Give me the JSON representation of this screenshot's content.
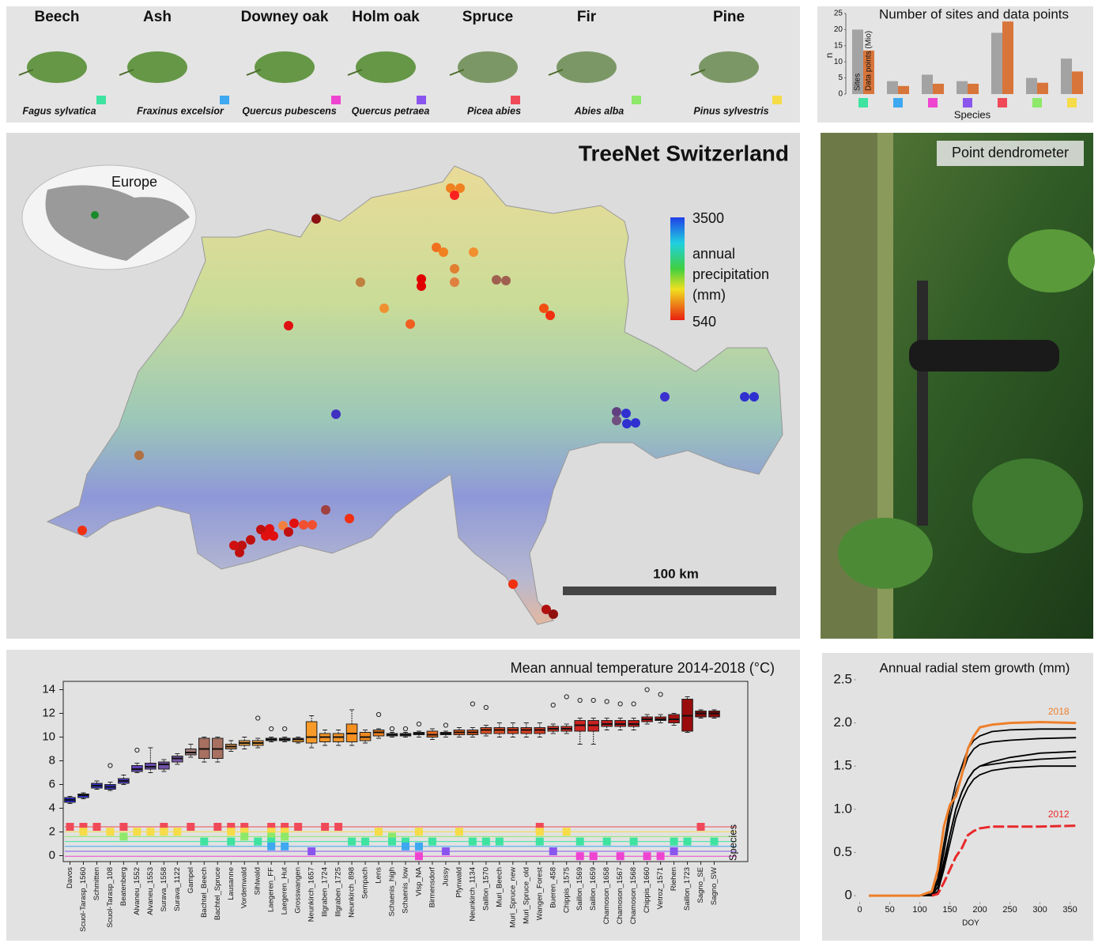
{
  "species": [
    {
      "name": "Beech",
      "latin": "Fagus sylvatica",
      "color": "#3fe3a0"
    },
    {
      "name": "Ash",
      "latin": "Fraxinus excelsior",
      "color": "#3ea8f0"
    },
    {
      "name": "Downey oak",
      "latin": "Quercus pubescens",
      "color": "#ee44d0"
    },
    {
      "name": "Holm oak",
      "latin": "Quercus petraea",
      "color": "#8a55ee"
    },
    {
      "name": "Spruce",
      "latin": "Picea abies",
      "color": "#f04a58"
    },
    {
      "name": "Fir",
      "latin": "Abies alba",
      "color": "#8ee86a"
    },
    {
      "name": "Pine",
      "latin": "Pinus sylvestris",
      "color": "#f5dc48"
    }
  ],
  "map": {
    "title": "TreeNet Switzerland",
    "inset_label": "Europe",
    "colorbar_max": 3500,
    "colorbar_min": 540,
    "colorbar_label": [
      "annual",
      "precipitation",
      "(mm)"
    ],
    "scale_label": "100 km"
  },
  "photo": {
    "label": "Point dendrometer"
  },
  "chart_data": [
    {
      "type": "bar",
      "title": "Number of sites and  data points",
      "y_label": "n",
      "x_label": "Species",
      "categories": [
        null,
        null,
        null,
        null,
        null,
        null,
        null
      ],
      "category_colors": [
        "#3fe3a0",
        "#3ea8f0",
        "#ee44d0",
        "#8a55ee",
        "#f04a58",
        "#8ee86a",
        "#f5dc48"
      ],
      "series": [
        {
          "name": "Sites",
          "color": "#a3a3a3",
          "values": [
            20,
            4,
            6,
            4,
            19,
            5,
            11
          ]
        },
        {
          "name": "Data points (Mio)",
          "color": "#d8753a",
          "values": [
            13.5,
            2.5,
            3.2,
            3.2,
            22.5,
            3.5,
            7
          ]
        }
      ],
      "ylim": [
        0,
        25
      ],
      "yticks": [
        0,
        5,
        10,
        15,
        20,
        25
      ]
    },
    {
      "type": "box",
      "title": "Mean annual temperature 2014-2018 (°C)",
      "species_label": "Species",
      "categories": [
        "Davos",
        "Scuol-Tarasp_1560",
        "Schmitten",
        "Scuol-Tarasp_108",
        "Beatenberg",
        "Alvaneu_1552",
        "Alvaneu_1553",
        "Surava_1558",
        "Surava_1122",
        "Gampel",
        "Bachtel_Beech",
        "Bachtel_Spruce",
        "Lausanne",
        "Vordemwald",
        "Sihlwald",
        "Laegeren_FF",
        "Laegeren_Hut",
        "Grosswangen",
        "Neunkirch_1657",
        "Illgraben_1724",
        "Illgraben_1725",
        "Neunkirch_898",
        "Sempach",
        "Lens",
        "Schaenis_high",
        "Schaenis_low",
        "Visp_NA",
        "Birmensdorf",
        "Jussy",
        "Pfynwald",
        "Neunkirch_1134",
        "Saillon_1570",
        "Muri_Beech",
        "Muri_Spruce_new",
        "Muri_Spruce_old",
        "Wangen_Forest",
        "Bueren_458",
        "Chippis_1575",
        "Saillon_1569",
        "Saillon_1659",
        "Chamoson_1658",
        "Chamoson_1567",
        "Chamoson_1568",
        "Chippis_1660",
        "Vetroz_1571",
        "Riehen",
        "Saillon_1723",
        "Sagno_SE",
        "Sagno_SW"
      ],
      "min": [
        4.4,
        4.8,
        5.6,
        5.5,
        6.0,
        7.0,
        7.0,
        7.1,
        7.7,
        8.3,
        7.9,
        7.9,
        8.8,
        9.0,
        9.1,
        9.6,
        9.6,
        9.5,
        9.1,
        9.3,
        9.3,
        9.3,
        9.5,
        9.9,
        10.0,
        10.0,
        10.0,
        9.8,
        10.0,
        10.0,
        10.0,
        10.1,
        10.0,
        10.0,
        10.0,
        10.0,
        10.3,
        10.3,
        9.4,
        9.4,
        10.6,
        10.6,
        10.6,
        11.1,
        11.2,
        11.0,
        10.4,
        11.6,
        11.6
      ],
      "q1": [
        4.5,
        4.9,
        5.7,
        5.6,
        6.1,
        7.1,
        7.3,
        7.3,
        7.9,
        8.5,
        8.2,
        8.2,
        9.0,
        9.3,
        9.3,
        9.7,
        9.7,
        9.6,
        9.5,
        9.6,
        9.6,
        9.6,
        9.7,
        10.1,
        10.1,
        10.1,
        10.2,
        10.0,
        10.2,
        10.2,
        10.2,
        10.3,
        10.3,
        10.3,
        10.3,
        10.3,
        10.5,
        10.5,
        10.5,
        10.5,
        10.9,
        10.9,
        10.9,
        11.3,
        11.4,
        11.2,
        10.5,
        11.7,
        11.7
      ],
      "median": [
        4.7,
        5.1,
        5.9,
        5.8,
        6.3,
        7.3,
        7.5,
        7.7,
        8.2,
        8.7,
        9.0,
        9.0,
        9.2,
        9.5,
        9.5,
        9.8,
        9.8,
        9.8,
        10.0,
        10.0,
        10.0,
        10.3,
        10.0,
        10.4,
        10.2,
        10.2,
        10.3,
        10.2,
        10.3,
        10.4,
        10.4,
        10.6,
        10.6,
        10.6,
        10.6,
        10.6,
        10.7,
        10.7,
        11.0,
        11.0,
        11.1,
        11.1,
        11.1,
        11.5,
        11.5,
        11.5,
        11.8,
        12.0,
        12.0
      ],
      "q3": [
        4.9,
        5.2,
        6.1,
        6.0,
        6.5,
        7.6,
        7.8,
        7.9,
        8.4,
        9.0,
        9.9,
        9.9,
        9.4,
        9.7,
        9.7,
        9.9,
        9.9,
        9.9,
        11.3,
        10.3,
        10.3,
        11.1,
        10.4,
        10.6,
        10.3,
        10.3,
        10.4,
        10.5,
        10.4,
        10.6,
        10.6,
        10.8,
        10.8,
        10.8,
        10.8,
        10.8,
        10.9,
        10.9,
        11.4,
        11.4,
        11.4,
        11.4,
        11.4,
        11.7,
        11.7,
        11.9,
        13.2,
        12.2,
        12.2
      ],
      "max": [
        5.0,
        5.3,
        6.3,
        6.2,
        6.8,
        7.8,
        9.1,
        8.1,
        8.6,
        9.4,
        10.0,
        10.0,
        9.7,
        10.0,
        9.9,
        10.0,
        10.0,
        10.0,
        11.8,
        10.6,
        10.6,
        12.3,
        10.6,
        10.7,
        10.4,
        10.4,
        10.5,
        10.7,
        10.5,
        10.8,
        10.8,
        11.0,
        11.2,
        11.2,
        11.2,
        11.2,
        11.1,
        11.1,
        11.6,
        11.6,
        11.6,
        11.6,
        11.6,
        11.9,
        11.9,
        12.0,
        13.4,
        12.3,
        12.3
      ],
      "outliers": [
        null,
        null,
        null,
        7.6,
        null,
        8.9,
        null,
        null,
        null,
        null,
        null,
        null,
        null,
        null,
        11.6,
        10.7,
        10.7,
        null,
        null,
        null,
        null,
        null,
        null,
        11.9,
        10.7,
        10.7,
        11.1,
        null,
        11.0,
        null,
        12.8,
        12.5,
        null,
        null,
        null,
        null,
        12.7,
        13.4,
        13.1,
        13.1,
        13.0,
        12.8,
        12.8,
        14.0,
        13.6,
        null,
        null,
        null,
        null
      ],
      "colors": [
        "#2020d0",
        "#2a2ad8",
        "#3030c8",
        "#3a34c8",
        "#4838c0",
        "#6040b8",
        "#6a48b0",
        "#7050a8",
        "#7a58a8",
        "#a07878",
        "#a87060",
        "#a87060",
        "#d09050",
        "#e09a40",
        "#e89838",
        "#f09a30",
        "#f09a30",
        "#f59a28",
        "#f89a28",
        "#f59528",
        "#f59528",
        "#f39020",
        "#f08a20",
        "#f08020",
        "#ee7a20",
        "#ee7520",
        "#ec7020",
        "#ea6a20",
        "#e86420",
        "#e65e20",
        "#e45820",
        "#e25020",
        "#e04a20",
        "#de4420",
        "#dc3e20",
        "#da3820",
        "#d83020",
        "#d42a20",
        "#d02420",
        "#cc2020",
        "#c81c1c",
        "#c41818",
        "#c01818",
        "#b81414",
        "#b41414",
        "#a81010",
        "#9a0c0c",
        "#8a0808",
        "#8a0808"
      ],
      "species_rows": [
        {
          "name": "Spruce",
          "color": "#f04a58",
          "sites": [
            "Davos",
            "Scuol-Tarasp_1560",
            "Schmitten",
            "Beatenberg",
            "Surava_1558",
            "Gampel",
            "Bachtel_Spruce",
            "Lausanne",
            "Vordemwald",
            "Laegeren_FF",
            "Laegeren_Hut",
            "Grosswangen",
            "Illgraben_1724",
            "Illgraben_1725",
            "Wangen_Forest",
            "Sagno_SE"
          ]
        },
        {
          "name": "Pine",
          "color": "#f5dc48",
          "sites": [
            "Scuol-Tarasp_1560",
            "Scuol-Tarasp_108",
            "Alvaneu_1552",
            "Alvaneu_1553",
            "Surava_1558",
            "Surava_1122",
            "Lausanne",
            "Vordemwald",
            "Laegeren_FF",
            "Laegeren_Hut",
            "Lens",
            "Visp_NA",
            "Pfynwald",
            "Wangen_Forest",
            "Chippis_1575"
          ]
        },
        {
          "name": "Fir",
          "color": "#8ee86a",
          "sites": [
            "Beatenberg",
            "Vordemwald",
            "Laegeren_FF",
            "Laegeren_Hut",
            "Schaenis_high"
          ]
        },
        {
          "name": "Beech",
          "color": "#3fe3a0",
          "sites": [
            "Bachtel_Beech",
            "Lausanne",
            "Sihlwald",
            "Laegeren_FF",
            "Neunkirch_898",
            "Sempach",
            "Schaenis_high",
            "Schaenis_low",
            "Birmensdorf",
            "Neunkirch_1134",
            "Saillon_1570",
            "Muri_Beech",
            "Wangen_Forest",
            "Saillon_1569",
            "Chamoson_1658",
            "Chamoson_1568",
            "Riehen",
            "Saillon_1723",
            "Sagno_SW"
          ]
        },
        {
          "name": "Ash",
          "color": "#3ea8f0",
          "sites": [
            "Laegeren_FF",
            "Laegeren_Hut",
            "Schaenis_low",
            "Visp_NA"
          ]
        },
        {
          "name": "Holm oak",
          "color": "#8a55ee",
          "sites": [
            "Neunkirch_1657",
            "Jussy",
            "Bueren_458",
            "Riehen"
          ]
        },
        {
          "name": "Downey oak",
          "color": "#ee44d0",
          "sites": [
            "Visp_NA",
            "Saillon_1569",
            "Saillon_1659",
            "Chamoson_1567",
            "Chippis_1660",
            "Vetroz_1571"
          ]
        }
      ],
      "ylim": [
        -0.5,
        14.7
      ],
      "yticks": [
        0,
        2,
        4,
        6,
        8,
        10,
        12,
        14
      ]
    },
    {
      "type": "line",
      "title": "Annual radial stem growth (mm)",
      "x_label": "DOY",
      "x": [
        15,
        100,
        120,
        130,
        140,
        150,
        160,
        170,
        180,
        190,
        200,
        220,
        250,
        300,
        360
      ],
      "series": [
        {
          "values": [
            0,
            0,
            0.02,
            0.2,
            0.6,
            1.0,
            1.3,
            1.5,
            1.7,
            1.8,
            1.85,
            1.9,
            1.92,
            1.93,
            1.93
          ],
          "color": "#000000"
        },
        {
          "values": [
            0,
            0,
            0.01,
            0.15,
            0.5,
            0.9,
            1.2,
            1.4,
            1.6,
            1.7,
            1.75,
            1.78,
            1.8,
            1.82,
            1.83
          ],
          "color": "#000000"
        },
        {
          "values": [
            0,
            0,
            0,
            0.1,
            0.4,
            0.7,
            1.0,
            1.2,
            1.35,
            1.45,
            1.5,
            1.55,
            1.6,
            1.65,
            1.67
          ],
          "color": "#000000"
        },
        {
          "values": [
            0,
            0,
            0,
            0.1,
            0.35,
            0.7,
            1.0,
            1.2,
            1.35,
            1.45,
            1.5,
            1.52,
            1.55,
            1.58,
            1.6
          ],
          "color": "#000000"
        },
        {
          "values": [
            0,
            0,
            0,
            0.05,
            0.3,
            0.6,
            0.9,
            1.1,
            1.25,
            1.35,
            1.4,
            1.45,
            1.48,
            1.5,
            1.5
          ],
          "color": "#000000"
        },
        {
          "name": "2012",
          "color": "#e8282a",
          "dashed": true,
          "values": [
            null,
            null,
            0,
            0.02,
            0.15,
            0.3,
            0.45,
            0.55,
            0.7,
            0.75,
            0.78,
            0.8,
            0.8,
            0.8,
            0.81
          ]
        },
        {
          "name": "2018",
          "color": "#ef7f2a",
          "values": [
            0,
            0,
            0.05,
            0.3,
            0.8,
            1.05,
            1.15,
            1.4,
            1.7,
            1.85,
            1.95,
            1.98,
            2.0,
            2.01,
            2.0
          ]
        }
      ],
      "xlim": [
        -10,
        365
      ],
      "xticks": [
        0,
        50,
        100,
        150,
        200,
        250,
        300,
        350
      ],
      "ylim": [
        -0.1,
        2.5
      ],
      "yticks": [
        0,
        0.5,
        {
          "value": 1,
          "label": "1.0"
        },
        1.5,
        {
          "value": 2,
          "label": "2.0"
        },
        2.5
      ]
    }
  ]
}
